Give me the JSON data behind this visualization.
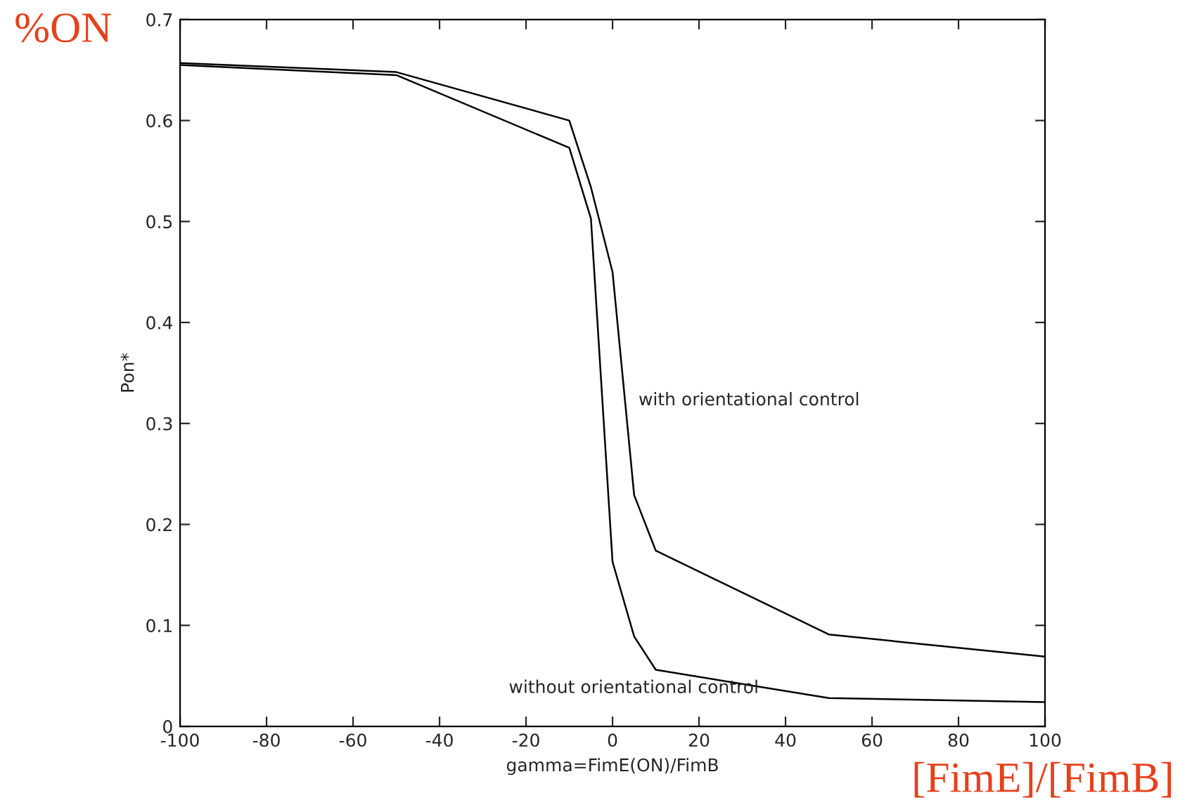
{
  "chart_data": {
    "type": "line",
    "xlabel": "gamma=FimE(ON)/FimB",
    "ylabel": "Pon*",
    "xlim": [
      -100,
      100
    ],
    "xticks": [
      -100,
      -80,
      -60,
      -40,
      -20,
      0,
      20,
      40,
      60,
      80,
      100
    ],
    "ylim": [
      0,
      0.7
    ],
    "yticks": [
      0,
      0.1,
      0.2,
      0.3,
      0.4,
      0.5,
      0.6,
      0.7
    ],
    "grid": false,
    "legend": false,
    "marker": "none",
    "line_style": "solid",
    "series": [
      {
        "name": "with orientational control",
        "color": "#000000",
        "x": [
          -100,
          -50,
          -10,
          -5,
          0,
          5,
          10,
          50,
          100
        ],
        "values": [
          0.657,
          0.648,
          0.6,
          0.534,
          0.45,
          0.229,
          0.174,
          0.091,
          0.069
        ]
      },
      {
        "name": "without orientational control",
        "color": "#000000",
        "x": [
          -100,
          -50,
          -10,
          -5,
          0,
          5,
          10,
          50,
          100
        ],
        "values": [
          0.655,
          0.645,
          0.573,
          0.503,
          0.163,
          0.089,
          0.056,
          0.028,
          0.024
        ]
      }
    ],
    "annotations": [
      "%ON",
      "[FimE]/[FimB]"
    ]
  }
}
